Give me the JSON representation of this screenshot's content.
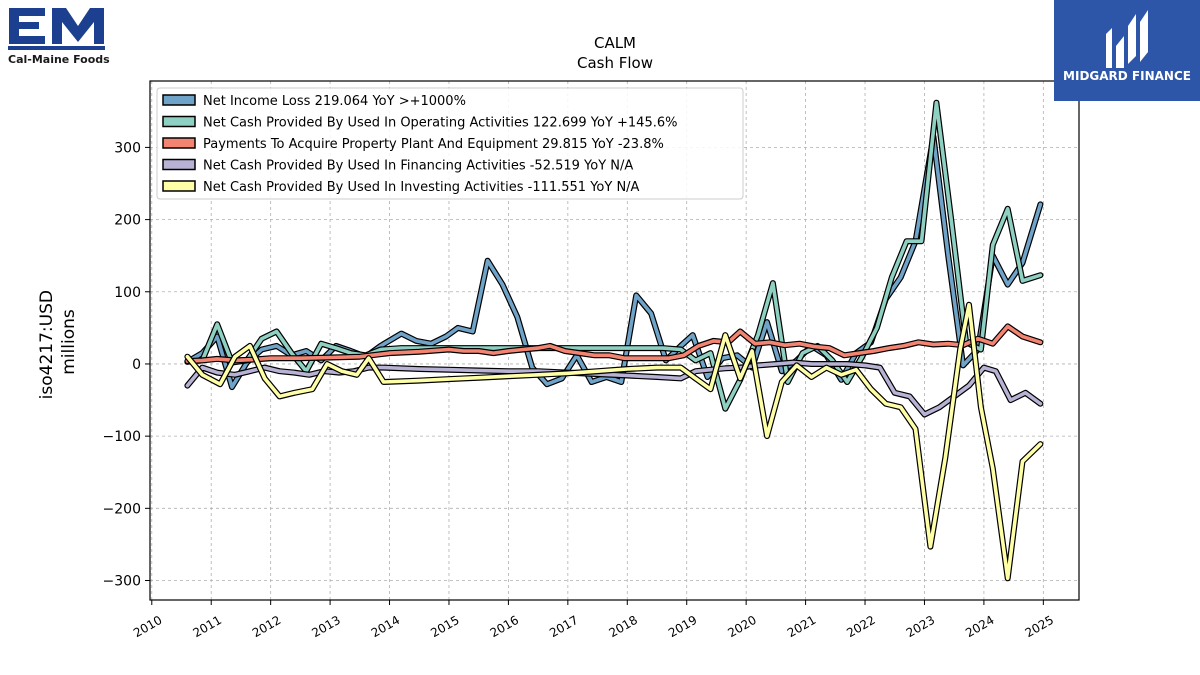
{
  "logos": {
    "left_text": "Cal-Maine Foods",
    "left_color": "#1d3f8f",
    "right_text": "MIDGARD FINANCE",
    "right_bg": "#2d55a8"
  },
  "chart_data": {
    "type": "line",
    "title": "CALM",
    "subtitle": "Cash Flow",
    "ylabel": "iso4217:USD\nmillions",
    "xlim": [
      2009.97,
      2025.6
    ],
    "ylim": [
      -327,
      392
    ],
    "yticks": [
      -300,
      -200,
      -100,
      0,
      100,
      200,
      300
    ],
    "ytick_labels": [
      "−300",
      "−200",
      "−100",
      "0",
      "100",
      "200",
      "300"
    ],
    "xticks": [
      2010,
      2011,
      2012,
      2013,
      2014,
      2015,
      2016,
      2017,
      2018,
      2019,
      2020,
      2021,
      2022,
      2023,
      2024,
      2025
    ],
    "xtick_labels": [
      "2010",
      "2011",
      "2012",
      "2013",
      "2014",
      "2015",
      "2016",
      "2017",
      "2018",
      "2019",
      "2020",
      "2021",
      "2022",
      "2023",
      "2024",
      "2025"
    ],
    "grid": true,
    "legend_position": "top-left",
    "series": [
      {
        "name": "Net Income Loss  219.064 YoY >+1000%",
        "color": "#6fa3c8",
        "points": [
          [
            2010.6,
            3
          ],
          [
            2010.85,
            15
          ],
          [
            2011.1,
            38
          ],
          [
            2011.35,
            -32
          ],
          [
            2011.6,
            2
          ],
          [
            2011.85,
            20
          ],
          [
            2012.1,
            25
          ],
          [
            2012.35,
            12
          ],
          [
            2012.6,
            18
          ],
          [
            2012.85,
            5
          ],
          [
            2013.1,
            25
          ],
          [
            2013.35,
            18
          ],
          [
            2013.6,
            10
          ],
          [
            2013.85,
            25
          ],
          [
            2014.2,
            42
          ],
          [
            2014.45,
            32
          ],
          [
            2014.7,
            28
          ],
          [
            2014.95,
            38
          ],
          [
            2015.15,
            50
          ],
          [
            2015.4,
            45
          ],
          [
            2015.65,
            143
          ],
          [
            2015.9,
            110
          ],
          [
            2016.15,
            65
          ],
          [
            2016.4,
            -5
          ],
          [
            2016.65,
            -28
          ],
          [
            2016.9,
            -20
          ],
          [
            2017.15,
            12
          ],
          [
            2017.4,
            -25
          ],
          [
            2017.65,
            -18
          ],
          [
            2017.9,
            -25
          ],
          [
            2018.15,
            95
          ],
          [
            2018.4,
            70
          ],
          [
            2018.65,
            5
          ],
          [
            2018.9,
            25
          ],
          [
            2019.1,
            40
          ],
          [
            2019.35,
            -18
          ],
          [
            2019.6,
            8
          ],
          [
            2019.85,
            12
          ],
          [
            2020.1,
            -5
          ],
          [
            2020.35,
            58
          ],
          [
            2020.6,
            -10
          ],
          [
            2020.85,
            5
          ],
          [
            2021.1,
            25
          ],
          [
            2021.35,
            12
          ],
          [
            2021.6,
            -22
          ],
          [
            2021.85,
            15
          ],
          [
            2022.1,
            30
          ],
          [
            2022.35,
            90
          ],
          [
            2022.6,
            120
          ],
          [
            2022.85,
            170
          ],
          [
            2023.15,
            315
          ],
          [
            2023.4,
            150
          ],
          [
            2023.65,
            -2
          ],
          [
            2023.9,
            20
          ],
          [
            2024.15,
            150
          ],
          [
            2024.4,
            110
          ],
          [
            2024.65,
            140
          ],
          [
            2024.95,
            221
          ]
        ]
      },
      {
        "name": "Net Cash Provided By Used In Operating Activities  122.699 YoY +145.6%",
        "color": "#8ed1c2",
        "points": [
          [
            2010.6,
            3
          ],
          [
            2010.85,
            5
          ],
          [
            2011.1,
            55
          ],
          [
            2011.35,
            2
          ],
          [
            2011.6,
            5
          ],
          [
            2011.85,
            35
          ],
          [
            2012.1,
            45
          ],
          [
            2012.35,
            15
          ],
          [
            2012.6,
            -10
          ],
          [
            2012.85,
            28
          ],
          [
            2013.1,
            22
          ],
          [
            2013.35,
            15
          ],
          [
            2013.6,
            12
          ],
          [
            2013.85,
            20
          ],
          [
            2014.2,
            22
          ],
          [
            2014.6,
            22
          ],
          [
            2015.0,
            22
          ],
          [
            2015.4,
            22
          ],
          [
            2015.8,
            22
          ],
          [
            2016.2,
            22
          ],
          [
            2016.6,
            22
          ],
          [
            2017.0,
            22
          ],
          [
            2017.4,
            22
          ],
          [
            2017.8,
            22
          ],
          [
            2018.2,
            22
          ],
          [
            2018.6,
            22
          ],
          [
            2018.9,
            20
          ],
          [
            2019.15,
            5
          ],
          [
            2019.4,
            15
          ],
          [
            2019.65,
            -62
          ],
          [
            2019.9,
            -22
          ],
          [
            2020.2,
            40
          ],
          [
            2020.45,
            112
          ],
          [
            2020.7,
            -25
          ],
          [
            2020.95,
            15
          ],
          [
            2021.2,
            25
          ],
          [
            2021.45,
            5
          ],
          [
            2021.7,
            -25
          ],
          [
            2021.95,
            10
          ],
          [
            2022.2,
            50
          ],
          [
            2022.45,
            120
          ],
          [
            2022.7,
            170
          ],
          [
            2022.95,
            170
          ],
          [
            2023.2,
            362
          ],
          [
            2023.45,
            200
          ],
          [
            2023.7,
            30
          ],
          [
            2023.95,
            20
          ],
          [
            2024.15,
            165
          ],
          [
            2024.4,
            215
          ],
          [
            2024.65,
            115
          ],
          [
            2024.95,
            123
          ]
        ]
      },
      {
        "name": "Payments To Acquire Property Plant And Equipment  29.815 YoY -23.8%",
        "color": "#f48472",
        "points": [
          [
            2010.6,
            4
          ],
          [
            2010.85,
            5
          ],
          [
            2011.1,
            7
          ],
          [
            2011.4,
            5
          ],
          [
            2011.7,
            6
          ],
          [
            2012.0,
            8
          ],
          [
            2012.5,
            8
          ],
          [
            2013.0,
            9
          ],
          [
            2013.5,
            10
          ],
          [
            2014.0,
            15
          ],
          [
            2014.5,
            17
          ],
          [
            2015.0,
            20
          ],
          [
            2015.25,
            18
          ],
          [
            2015.5,
            18
          ],
          [
            2015.75,
            15
          ],
          [
            2016.0,
            18
          ],
          [
            2016.25,
            20
          ],
          [
            2016.5,
            22
          ],
          [
            2016.7,
            25
          ],
          [
            2016.95,
            18
          ],
          [
            2017.2,
            15
          ],
          [
            2017.45,
            12
          ],
          [
            2017.7,
            12
          ],
          [
            2017.95,
            8
          ],
          [
            2018.2,
            8
          ],
          [
            2018.45,
            8
          ],
          [
            2018.7,
            8
          ],
          [
            2018.95,
            12
          ],
          [
            2019.2,
            25
          ],
          [
            2019.45,
            32
          ],
          [
            2019.7,
            30
          ],
          [
            2019.9,
            45
          ],
          [
            2020.15,
            28
          ],
          [
            2020.4,
            30
          ],
          [
            2020.65,
            26
          ],
          [
            2020.9,
            28
          ],
          [
            2021.15,
            24
          ],
          [
            2021.4,
            22
          ],
          [
            2021.65,
            12
          ],
          [
            2021.9,
            15
          ],
          [
            2022.15,
            18
          ],
          [
            2022.4,
            22
          ],
          [
            2022.65,
            25
          ],
          [
            2022.9,
            30
          ],
          [
            2023.15,
            27
          ],
          [
            2023.4,
            28
          ],
          [
            2023.65,
            26
          ],
          [
            2023.9,
            35
          ],
          [
            2024.15,
            28
          ],
          [
            2024.4,
            52
          ],
          [
            2024.65,
            38
          ],
          [
            2024.95,
            30
          ]
        ]
      },
      {
        "name": "Net Cash Provided By Used In Financing Activities  -52.519 YoY N/A",
        "color": "#b8b3d4",
        "points": [
          [
            2010.6,
            -30
          ],
          [
            2010.85,
            -5
          ],
          [
            2011.1,
            -12
          ],
          [
            2011.4,
            -15
          ],
          [
            2011.65,
            -10
          ],
          [
            2011.9,
            -5
          ],
          [
            2012.15,
            -10
          ],
          [
            2012.4,
            -12
          ],
          [
            2012.65,
            -15
          ],
          [
            2012.9,
            -10
          ],
          [
            2013.15,
            -12
          ],
          [
            2013.4,
            -10
          ],
          [
            2013.65,
            -5
          ],
          [
            2013.9,
            -5
          ],
          [
            2014.5,
            -7
          ],
          [
            2015.0,
            -8
          ],
          [
            2015.5,
            -9
          ],
          [
            2016.0,
            -10
          ],
          [
            2016.5,
            -10
          ],
          [
            2017.0,
            -12
          ],
          [
            2017.5,
            -14
          ],
          [
            2018.0,
            -16
          ],
          [
            2018.5,
            -18
          ],
          [
            2018.9,
            -20
          ],
          [
            2019.15,
            -10
          ],
          [
            2019.4,
            -8
          ],
          [
            2019.65,
            -6
          ],
          [
            2019.9,
            -5
          ],
          [
            2020.2,
            -2
          ],
          [
            2020.5,
            0
          ],
          [
            2020.8,
            2
          ],
          [
            2021.1,
            0
          ],
          [
            2021.4,
            0
          ],
          [
            2021.7,
            0
          ],
          [
            2022.0,
            -2
          ],
          [
            2022.25,
            -5
          ],
          [
            2022.5,
            -40
          ],
          [
            2022.75,
            -45
          ],
          [
            2023.0,
            -70
          ],
          [
            2023.25,
            -60
          ],
          [
            2023.5,
            -45
          ],
          [
            2023.75,
            -30
          ],
          [
            2024.0,
            -5
          ],
          [
            2024.2,
            -10
          ],
          [
            2024.45,
            -50
          ],
          [
            2024.7,
            -40
          ],
          [
            2024.95,
            -55
          ]
        ]
      },
      {
        "name": "Net Cash Provided By Used In Investing Activities  -111.551 YoY N/A",
        "color": "#ffffa8",
        "points": [
          [
            2010.6,
            10
          ],
          [
            2010.85,
            -15
          ],
          [
            2011.15,
            -28
          ],
          [
            2011.4,
            10
          ],
          [
            2011.65,
            25
          ],
          [
            2011.9,
            -20
          ],
          [
            2012.15,
            -45
          ],
          [
            2012.4,
            -40
          ],
          [
            2012.7,
            -35
          ],
          [
            2012.95,
            0
          ],
          [
            2013.2,
            -10
          ],
          [
            2013.45,
            -15
          ],
          [
            2013.65,
            8
          ],
          [
            2013.9,
            -25
          ],
          [
            2014.5,
            -23
          ],
          [
            2015.0,
            -21
          ],
          [
            2015.5,
            -19
          ],
          [
            2016.0,
            -17
          ],
          [
            2016.5,
            -15
          ],
          [
            2017.0,
            -13
          ],
          [
            2017.5,
            -10
          ],
          [
            2018.0,
            -7
          ],
          [
            2018.5,
            -5
          ],
          [
            2018.9,
            -5
          ],
          [
            2019.15,
            -20
          ],
          [
            2019.4,
            -35
          ],
          [
            2019.65,
            40
          ],
          [
            2019.9,
            -20
          ],
          [
            2020.1,
            18
          ],
          [
            2020.35,
            -100
          ],
          [
            2020.6,
            -25
          ],
          [
            2020.85,
            -2
          ],
          [
            2021.1,
            -18
          ],
          [
            2021.35,
            -5
          ],
          [
            2021.6,
            -15
          ],
          [
            2021.85,
            -8
          ],
          [
            2022.1,
            -35
          ],
          [
            2022.35,
            -55
          ],
          [
            2022.6,
            -60
          ],
          [
            2022.85,
            -90
          ],
          [
            2023.1,
            -253
          ],
          [
            2023.35,
            -130
          ],
          [
            2023.6,
            20
          ],
          [
            2023.75,
            82
          ],
          [
            2023.95,
            -60
          ],
          [
            2024.15,
            -145
          ],
          [
            2024.4,
            -297
          ],
          [
            2024.65,
            -135
          ],
          [
            2024.95,
            -111
          ]
        ]
      }
    ]
  }
}
